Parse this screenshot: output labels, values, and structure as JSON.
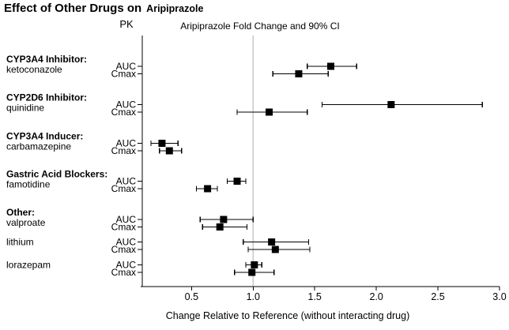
{
  "chart_data": {
    "type": "scatter",
    "subtype": "forest-plot-with-error-bars",
    "title": "Effect of Other Drugs on Aripiprazole",
    "title_parts": {
      "main": "Effect of Other Drugs on",
      "drug": "Aripiprazole"
    },
    "pk_header": "PK",
    "ci_header": "Aripiprazole Fold Change and 90% CI",
    "xlabel": "Change Relative to Reference (without interacting drug)",
    "xlim": [
      0.1,
      3.0
    ],
    "xticks": [
      0.5,
      1.0,
      1.5,
      2.0,
      2.5,
      3.0
    ],
    "reference_line_x": 1.0,
    "grid": false,
    "colors": {
      "marker": "#000000",
      "error_bar": "#000000",
      "axis": "#000000",
      "reference_line": "#c8c8c8",
      "text": "#000000",
      "background": "#ffffff"
    },
    "groups": [
      {
        "header": "CYP3A4 Inhibitor:",
        "drug": "ketoconazole",
        "rows": [
          {
            "pk": "AUC",
            "value": 1.63,
            "ci_low": 1.44,
            "ci_high": 1.84
          },
          {
            "pk": "Cmax",
            "value": 1.37,
            "ci_low": 1.16,
            "ci_high": 1.61
          }
        ]
      },
      {
        "header": "CYP2D6 Inhibitor:",
        "drug": "quinidine",
        "rows": [
          {
            "pk": "AUC",
            "value": 2.12,
            "ci_low": 1.56,
            "ci_high": 2.86
          },
          {
            "pk": "Cmax",
            "value": 1.13,
            "ci_low": 0.87,
            "ci_high": 1.44
          }
        ]
      },
      {
        "header": "CYP3A4 Inducer:",
        "drug": "carbamazepine",
        "rows": [
          {
            "pk": "AUC",
            "value": 0.26,
            "ci_low": 0.17,
            "ci_high": 0.39
          },
          {
            "pk": "Cmax",
            "value": 0.32,
            "ci_low": 0.24,
            "ci_high": 0.42
          }
        ]
      },
      {
        "header": "Gastric Acid Blockers:",
        "drug": "famotidine",
        "rows": [
          {
            "pk": "AUC",
            "value": 0.87,
            "ci_low": 0.79,
            "ci_high": 0.94
          },
          {
            "pk": "Cmax",
            "value": 0.63,
            "ci_low": 0.54,
            "ci_high": 0.71
          }
        ]
      },
      {
        "header": "Other:",
        "drug": "valproate",
        "rows": [
          {
            "pk": "AUC",
            "value": 0.76,
            "ci_low": 0.57,
            "ci_high": 1.0
          },
          {
            "pk": "Cmax",
            "value": 0.73,
            "ci_low": 0.59,
            "ci_high": 0.95
          }
        ]
      },
      {
        "header": "",
        "drug": "lithium",
        "rows": [
          {
            "pk": "AUC",
            "value": 1.15,
            "ci_low": 0.92,
            "ci_high": 1.45
          },
          {
            "pk": "Cmax",
            "value": 1.18,
            "ci_low": 0.96,
            "ci_high": 1.46
          }
        ]
      },
      {
        "header": "",
        "drug": "lorazepam",
        "rows": [
          {
            "pk": "AUC",
            "value": 1.01,
            "ci_low": 0.94,
            "ci_high": 1.07
          },
          {
            "pk": "Cmax",
            "value": 0.99,
            "ci_low": 0.85,
            "ci_high": 1.17
          }
        ]
      }
    ]
  }
}
